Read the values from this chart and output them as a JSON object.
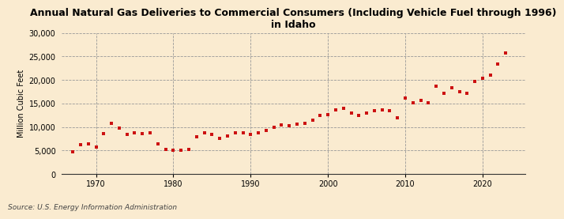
{
  "title": "Annual Natural Gas Deliveries to Commercial Consumers (Including Vehicle Fuel through 1996)\nin Idaho",
  "ylabel": "Million Cubic Feet",
  "source": "Source: U.S. Energy Information Administration",
  "fig_bg_color": "#faebd0",
  "plot_bg_color": "#faebd0",
  "marker_color": "#cc1111",
  "ylim": [
    0,
    30000
  ],
  "yticks": [
    0,
    5000,
    10000,
    15000,
    20000,
    25000,
    30000
  ],
  "xlim": [
    1965.5,
    2025.5
  ],
  "xticks": [
    1970,
    1980,
    1990,
    2000,
    2010,
    2020
  ],
  "years": [
    1967,
    1968,
    1969,
    1970,
    1971,
    1972,
    1973,
    1974,
    1975,
    1976,
    1977,
    1978,
    1979,
    1980,
    1981,
    1982,
    1983,
    1984,
    1985,
    1986,
    1987,
    1988,
    1989,
    1990,
    1991,
    1992,
    1993,
    1994,
    1995,
    1996,
    1997,
    1998,
    1999,
    2000,
    2001,
    2002,
    2003,
    2004,
    2005,
    2006,
    2007,
    2008,
    2009,
    2010,
    2011,
    2012,
    2013,
    2014,
    2015,
    2016,
    2017,
    2018,
    2019,
    2020,
    2021,
    2022,
    2023
  ],
  "values": [
    4800,
    6200,
    6400,
    5800,
    8600,
    10800,
    9700,
    8500,
    8700,
    8600,
    8700,
    6500,
    5200,
    5100,
    5000,
    5200,
    7900,
    8700,
    8400,
    7600,
    8100,
    8700,
    8700,
    8500,
    8800,
    9200,
    10000,
    10400,
    10200,
    10600,
    10700,
    11500,
    12400,
    12700,
    13700,
    14000,
    13000,
    12500,
    13000,
    13400,
    13700,
    13500,
    12000,
    16200,
    15200,
    15700,
    15200,
    18700,
    17200,
    18400,
    17500,
    17100,
    19600,
    20300,
    21100,
    23300,
    25700
  ],
  "title_fontsize": 9,
  "ylabel_fontsize": 7,
  "tick_fontsize": 7,
  "source_fontsize": 6.5,
  "marker_size": 7
}
